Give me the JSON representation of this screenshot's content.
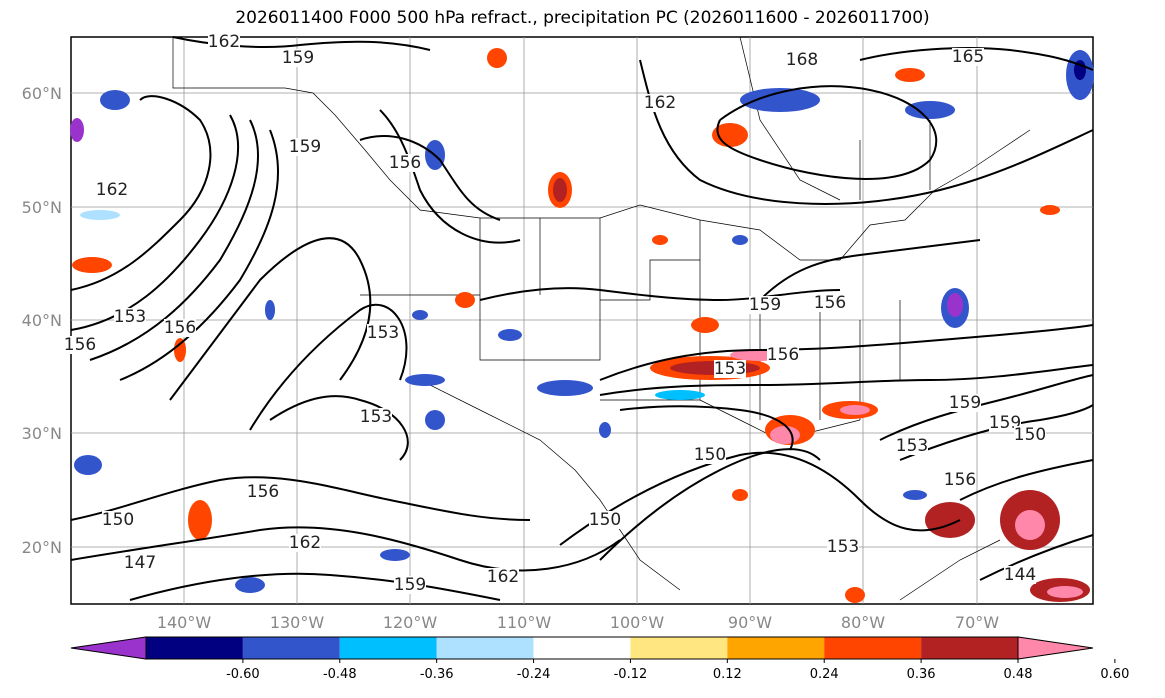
{
  "title": "2026011400 F000 500 hPa refract., precipitation PC (2026011600 - 2026011700)",
  "map": {
    "lat_labels": [
      "60°N",
      "50°N",
      "40°N",
      "30°N",
      "20°N"
    ],
    "lon_labels": [
      "140°W",
      "130°W",
      "120°W",
      "110°W",
      "100°W",
      "90°W",
      "80°W",
      "70°W"
    ],
    "contour_labels": [
      "162",
      "159",
      "168",
      "165",
      "162",
      "156",
      "159",
      "162",
      "153",
      "156",
      "156",
      "153",
      "153",
      "159",
      "156",
      "153",
      "156",
      "159",
      "153",
      "159",
      "150",
      "156",
      "150",
      "156",
      "150",
      "162",
      "147",
      "159",
      "162",
      "153",
      "144",
      "150"
    ]
  },
  "colorbar": {
    "ticks": [
      "-0.60",
      "-0.48",
      "-0.36",
      "-0.24",
      "-0.12",
      "0.12",
      "0.24",
      "0.36",
      "0.48",
      "0.60"
    ],
    "colors": [
      "#9933cc",
      "#000080",
      "#3355cc",
      "#00bfff",
      "#aee0ff",
      "#ffffff",
      "#ffe680",
      "#ffa500",
      "#ff4500",
      "#b22222",
      "#ff88aa"
    ]
  }
}
